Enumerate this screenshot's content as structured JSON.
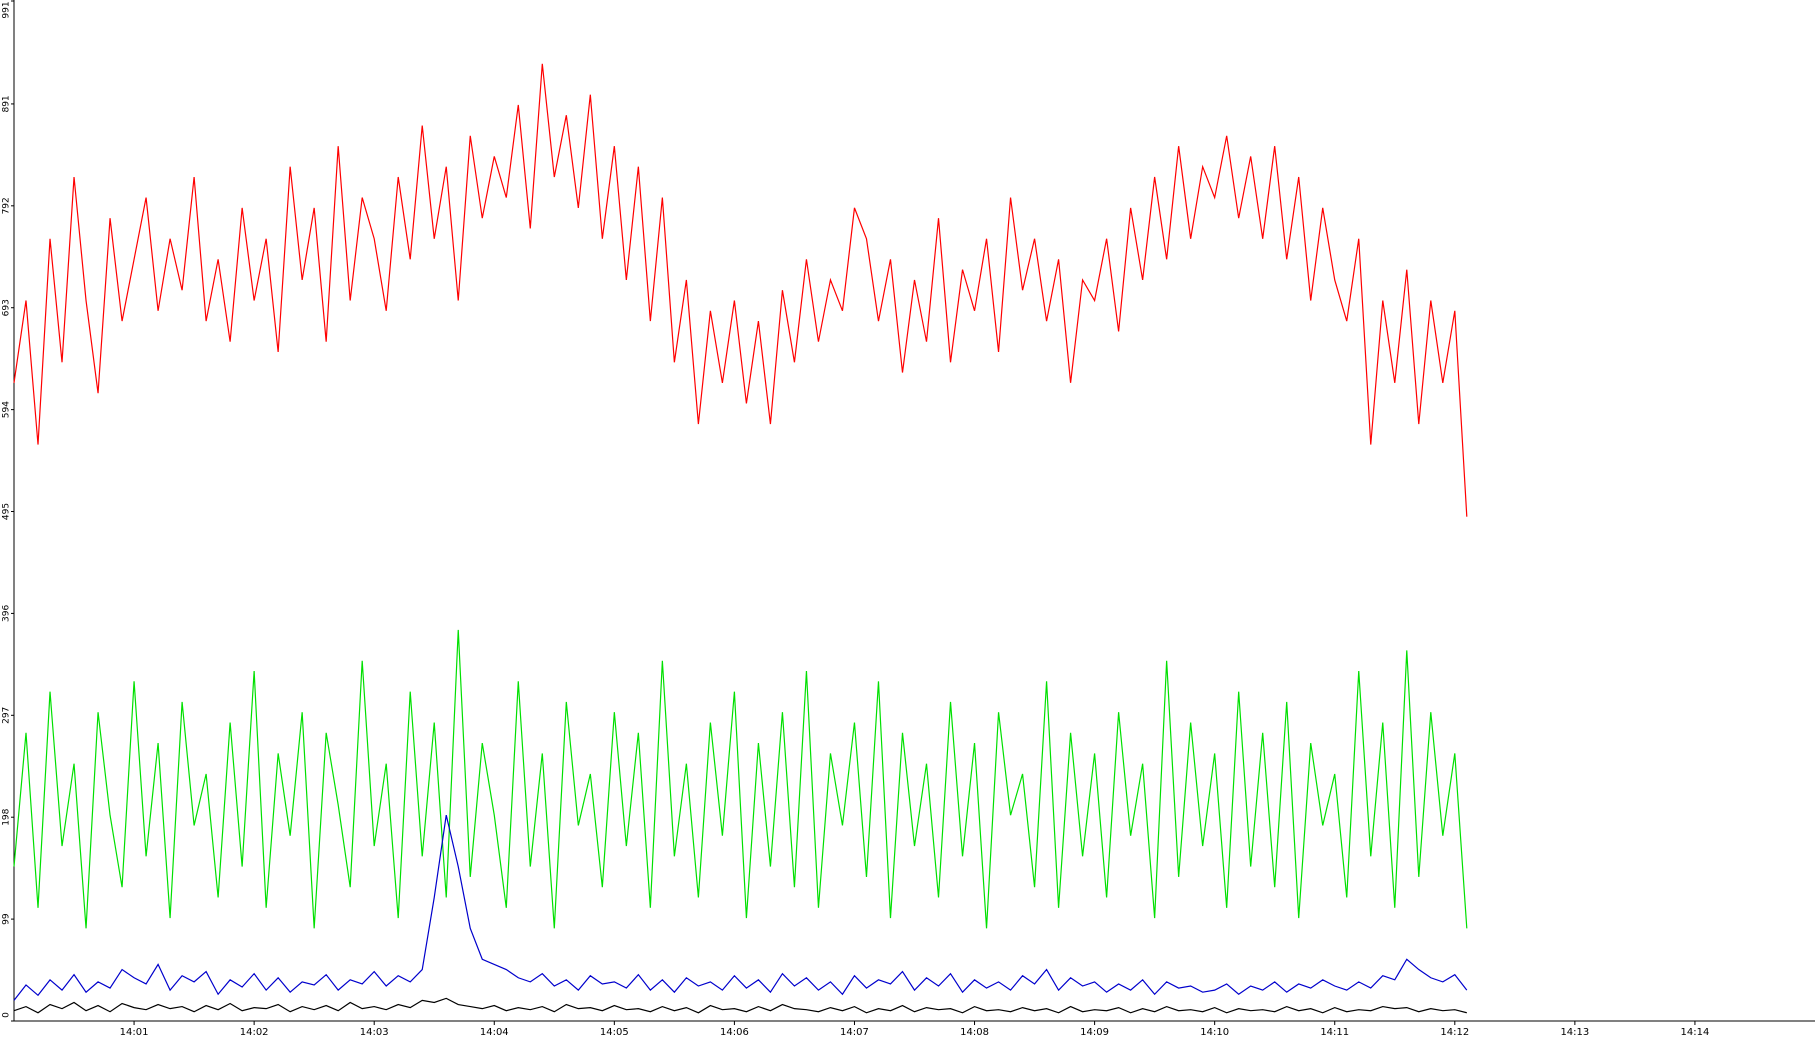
{
  "chart_data": {
    "type": "line",
    "x": [
      0.0,
      0.1,
      0.2,
      0.3,
      0.4,
      0.5,
      0.6,
      0.7,
      0.8,
      0.9,
      1.0,
      1.1,
      1.2,
      1.3,
      1.4,
      1.5,
      1.6,
      1.7,
      1.8,
      1.9,
      2.0,
      2.1,
      2.2,
      2.3,
      2.4,
      2.5,
      2.6,
      2.7,
      2.8,
      2.9,
      3.0,
      3.1,
      3.2,
      3.3,
      3.4,
      3.5,
      3.6,
      3.7,
      3.8,
      3.9,
      4.0,
      4.1,
      4.2,
      4.3,
      4.4,
      4.5,
      4.6,
      4.7,
      4.8,
      4.9,
      5.0,
      5.1,
      5.2,
      5.3,
      5.4,
      5.5,
      5.6,
      5.7,
      5.8,
      5.9,
      6.0,
      6.1,
      6.2,
      6.3,
      6.4,
      6.5,
      6.6,
      6.7,
      6.8,
      6.9,
      7.0,
      7.1,
      7.2,
      7.3,
      7.4,
      7.5,
      7.6,
      7.7,
      7.8,
      7.9,
      8.0,
      8.1,
      8.2,
      8.3,
      8.4,
      8.5,
      8.6,
      8.7,
      8.8,
      8.9,
      9.0,
      9.1,
      9.2,
      9.3,
      9.4,
      9.5,
      9.6,
      9.7,
      9.8,
      9.9,
      10.0,
      10.1,
      10.2,
      10.3,
      10.4,
      10.5,
      10.6,
      10.7,
      10.8,
      10.9,
      11.0,
      11.1,
      11.2,
      11.3,
      11.4,
      11.5,
      11.6,
      11.7,
      11.8,
      11.9,
      12.0,
      12.1
    ],
    "series": [
      {
        "color": "#ff0000",
        "values": [
          620,
          700,
          560,
          760,
          640,
          820,
          700,
          610,
          780,
          680,
          740,
          800,
          690,
          760,
          710,
          820,
          680,
          740,
          660,
          790,
          700,
          760,
          650,
          830,
          720,
          790,
          660,
          850,
          700,
          800,
          760,
          690,
          820,
          740,
          870,
          760,
          830,
          700,
          860,
          780,
          840,
          800,
          890,
          770,
          930,
          820,
          880,
          790,
          900,
          760,
          850,
          720,
          830,
          680,
          800,
          640,
          720,
          580,
          690,
          620,
          700,
          600,
          680,
          580,
          710,
          640,
          740,
          660,
          720,
          690,
          790,
          760,
          680,
          740,
          630,
          720,
          660,
          780,
          640,
          730,
          690,
          760,
          650,
          800,
          710,
          760,
          680,
          740,
          620,
          720,
          700,
          760,
          670,
          790,
          720,
          820,
          740,
          850,
          760,
          830,
          800,
          860,
          780,
          840,
          760,
          850,
          740,
          820,
          700,
          790,
          720,
          680,
          760,
          560,
          700,
          620,
          730,
          580,
          700,
          620,
          690,
          490
        ]
      },
      {
        "color": "#00e000",
        "values": [
          150,
          280,
          110,
          320,
          170,
          250,
          90,
          300,
          200,
          130,
          330,
          160,
          270,
          100,
          310,
          190,
          240,
          120,
          290,
          150,
          340,
          110,
          260,
          180,
          300,
          90,
          280,
          210,
          130,
          350,
          170,
          250,
          100,
          320,
          160,
          290,
          120,
          380,
          140,
          270,
          200,
          110,
          330,
          150,
          260,
          90,
          310,
          190,
          240,
          130,
          300,
          170,
          280,
          110,
          350,
          160,
          250,
          120,
          290,
          180,
          320,
          100,
          270,
          150,
          300,
          130,
          340,
          110,
          260,
          190,
          290,
          140,
          330,
          100,
          280,
          170,
          250,
          120,
          310,
          160,
          270,
          90,
          300,
          200,
          240,
          130,
          330,
          110,
          280,
          160,
          260,
          120,
          300,
          180,
          250,
          100,
          350,
          140,
          290,
          170,
          260,
          110,
          320,
          150,
          280,
          130,
          310,
          100,
          270,
          190,
          240,
          120,
          340,
          160,
          290,
          110,
          360,
          140,
          300,
          180,
          260,
          90
        ]
      },
      {
        "color": "#0000cc",
        "values": [
          20,
          35,
          25,
          40,
          30,
          45,
          28,
          38,
          32,
          50,
          42,
          36,
          55,
          30,
          44,
          38,
          48,
          26,
          40,
          33,
          46,
          30,
          42,
          28,
          38,
          35,
          45,
          30,
          40,
          36,
          48,
          34,
          44,
          38,
          50,
          120,
          200,
          150,
          90,
          60,
          55,
          50,
          42,
          38,
          46,
          34,
          40,
          30,
          44,
          36,
          38,
          32,
          45,
          30,
          40,
          28,
          42,
          34,
          38,
          30,
          44,
          32,
          40,
          28,
          46,
          34,
          42,
          30,
          38,
          26,
          44,
          32,
          40,
          36,
          48,
          30,
          42,
          34,
          46,
          28,
          40,
          32,
          38,
          30,
          44,
          36,
          50,
          30,
          42,
          34,
          38,
          28,
          36,
          30,
          40,
          26,
          38,
          32,
          34,
          28,
          30,
          36,
          26,
          34,
          30,
          38,
          28,
          36,
          32,
          40,
          34,
          30,
          38,
          32,
          44,
          40,
          60,
          50,
          42,
          38,
          45,
          30
        ]
      },
      {
        "color": "#000000",
        "values": [
          10,
          14,
          8,
          16,
          12,
          18,
          10,
          15,
          9,
          17,
          13,
          11,
          16,
          12,
          14,
          9,
          15,
          11,
          17,
          10,
          13,
          12,
          16,
          9,
          14,
          11,
          15,
          10,
          18,
          12,
          14,
          11,
          16,
          13,
          20,
          18,
          22,
          16,
          14,
          12,
          15,
          10,
          13,
          11,
          14,
          9,
          16,
          12,
          13,
          10,
          15,
          11,
          12,
          9,
          14,
          10,
          13,
          8,
          15,
          11,
          12,
          9,
          14,
          10,
          16,
          12,
          11,
          9,
          13,
          10,
          14,
          8,
          12,
          10,
          15,
          9,
          13,
          11,
          12,
          8,
          14,
          10,
          11,
          9,
          13,
          10,
          12,
          8,
          14,
          9,
          11,
          10,
          13,
          8,
          12,
          9,
          14,
          10,
          11,
          9,
          13,
          8,
          12,
          10,
          11,
          9,
          14,
          10,
          12,
          8,
          13,
          9,
          11,
          10,
          14,
          12,
          13,
          9,
          12,
          10,
          11,
          8
        ]
      }
    ],
    "xlim": [
      0,
      15
    ],
    "xticks": [
      {
        "value": 1,
        "label": "14:01"
      },
      {
        "value": 2,
        "label": "14:02"
      },
      {
        "value": 3,
        "label": "14:03"
      },
      {
        "value": 4,
        "label": "14:04"
      },
      {
        "value": 5,
        "label": "14:05"
      },
      {
        "value": 6,
        "label": "14:06"
      },
      {
        "value": 7,
        "label": "14:07"
      },
      {
        "value": 8,
        "label": "14:08"
      },
      {
        "value": 9,
        "label": "14:09"
      },
      {
        "value": 10,
        "label": "14:10"
      },
      {
        "value": 11,
        "label": "14:11"
      },
      {
        "value": 12,
        "label": "14:12"
      },
      {
        "value": 13,
        "label": "14:13"
      },
      {
        "value": 14,
        "label": "14:14"
      }
    ],
    "ylim": [
      0,
      991
    ],
    "yticks": [
      0,
      99,
      198,
      297,
      396,
      495,
      594,
      693,
      792,
      891,
      991
    ]
  }
}
